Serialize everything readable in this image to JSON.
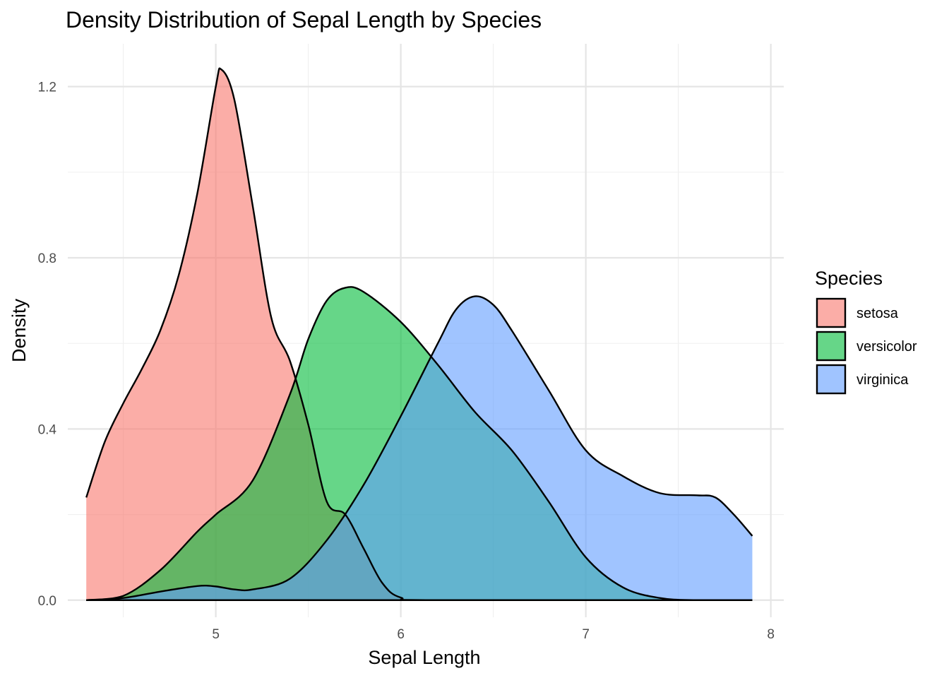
{
  "chart_data": {
    "type": "area",
    "subtype": "density",
    "title": "Density Distribution of Sepal Length by Species",
    "xlabel": "Sepal Length",
    "ylabel": "Density",
    "xlim": [
      4.2,
      8.07
    ],
    "ylim": [
      -0.04,
      1.3
    ],
    "xticks": [
      5,
      6,
      7,
      8
    ],
    "xtick_labels": [
      "5",
      "6",
      "7",
      "8"
    ],
    "yticks": [
      0.0,
      0.4,
      0.8,
      1.2
    ],
    "ytick_labels": [
      "0.0",
      "0.4",
      "0.8",
      "1.2"
    ],
    "grid": true,
    "legend": {
      "title": "Species",
      "position": "right"
    },
    "fill_opacity": 0.6,
    "series": [
      {
        "name": "setosa",
        "color": "#F8766D",
        "points": [
          [
            4.3,
            0.24
          ],
          [
            4.4,
            0.37
          ],
          [
            4.5,
            0.46
          ],
          [
            4.6,
            0.54
          ],
          [
            4.7,
            0.63
          ],
          [
            4.8,
            0.76
          ],
          [
            4.9,
            0.95
          ],
          [
            5.0,
            1.2
          ],
          [
            5.03,
            1.24
          ],
          [
            5.1,
            1.17
          ],
          [
            5.2,
            0.92
          ],
          [
            5.3,
            0.66
          ],
          [
            5.4,
            0.56
          ],
          [
            5.5,
            0.41
          ],
          [
            5.6,
            0.23
          ],
          [
            5.7,
            0.2
          ],
          [
            5.8,
            0.12
          ],
          [
            5.9,
            0.04
          ],
          [
            6.0,
            0.006
          ],
          [
            6.2,
            0.0
          ],
          [
            7.9,
            0.0
          ]
        ]
      },
      {
        "name": "versicolor",
        "color": "#00BA38",
        "points": [
          [
            4.3,
            0.0
          ],
          [
            4.5,
            0.01
          ],
          [
            4.7,
            0.07
          ],
          [
            4.9,
            0.16
          ],
          [
            5.0,
            0.2
          ],
          [
            5.2,
            0.28
          ],
          [
            5.4,
            0.48
          ],
          [
            5.5,
            0.61
          ],
          [
            5.6,
            0.7
          ],
          [
            5.7,
            0.73
          ],
          [
            5.8,
            0.72
          ],
          [
            6.0,
            0.65
          ],
          [
            6.2,
            0.55
          ],
          [
            6.4,
            0.44
          ],
          [
            6.6,
            0.35
          ],
          [
            6.8,
            0.23
          ],
          [
            7.0,
            0.1
          ],
          [
            7.2,
            0.03
          ],
          [
            7.4,
            0.005
          ],
          [
            7.6,
            0.0
          ],
          [
            7.9,
            0.0
          ]
        ]
      },
      {
        "name": "virginica",
        "color": "#619CFF",
        "points": [
          [
            4.3,
            0.0
          ],
          [
            4.5,
            0.005
          ],
          [
            4.7,
            0.02
          ],
          [
            4.9,
            0.033
          ],
          [
            5.0,
            0.032
          ],
          [
            5.1,
            0.025
          ],
          [
            5.2,
            0.025
          ],
          [
            5.4,
            0.05
          ],
          [
            5.6,
            0.14
          ],
          [
            5.8,
            0.27
          ],
          [
            6.0,
            0.43
          ],
          [
            6.2,
            0.6
          ],
          [
            6.3,
            0.68
          ],
          [
            6.4,
            0.71
          ],
          [
            6.5,
            0.69
          ],
          [
            6.6,
            0.63
          ],
          [
            6.8,
            0.49
          ],
          [
            7.0,
            0.35
          ],
          [
            7.2,
            0.29
          ],
          [
            7.4,
            0.25
          ],
          [
            7.6,
            0.245
          ],
          [
            7.7,
            0.24
          ],
          [
            7.8,
            0.2
          ],
          [
            7.9,
            0.15
          ]
        ]
      }
    ]
  }
}
